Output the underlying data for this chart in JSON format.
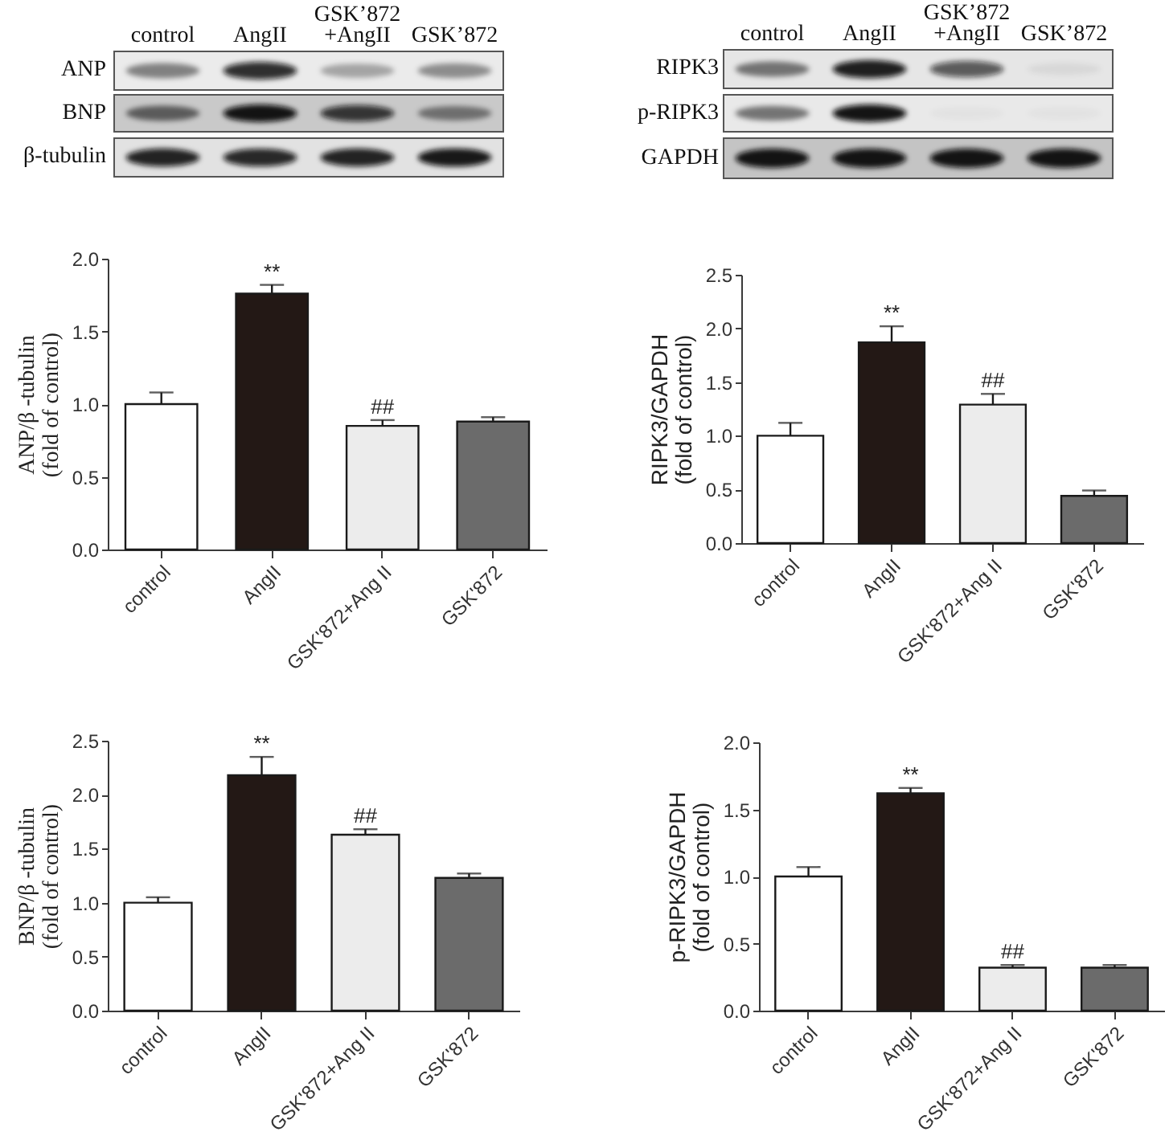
{
  "chart_data": [
    {
      "type": "other",
      "categories": [
        "control",
        "AngII",
        "GSK’872\n+AngII",
        "GSK’872"
      ],
      "y_categories": [
        "ANP",
        "BNP",
        "β-tubulin"
      ]
    },
    {
      "type": "other",
      "categories": [
        "control",
        "AngII",
        "GSK’872\n+AngII",
        "GSK’872"
      ],
      "y_categories": [
        "RIPK3",
        "p-RIPK3",
        "GAPDH"
      ]
    },
    {
      "type": "bar",
      "ylabel": "ANP/β -tubulin\n(fold of control)",
      "categories": [
        "control",
        "AngII",
        "GSK'872+Ang II",
        "GSK'872"
      ],
      "values": [
        1.0,
        1.76,
        0.85,
        0.88
      ],
      "colors": [
        "#ffffff",
        "#231815",
        "#ececec",
        "#6b6b6b"
      ],
      "errors": [
        [
          1.0,
          1.08
        ],
        [
          1.76,
          1.82
        ],
        [
          0.85,
          0.89
        ],
        [
          0.88,
          0.91
        ]
      ],
      "ylim": [
        0,
        2.0
      ],
      "yticks": [
        {
          "value": 0,
          "label": "0.0"
        },
        0.5,
        {
          "value": 1,
          "label": "1.0"
        },
        1.5,
        {
          "value": 2,
          "label": "2.0"
        }
      ],
      "annotations": [
        {
          "text": "**",
          "x": "AngII",
          "y": 1.82
        },
        {
          "text": "##",
          "x": "GSK'872+Ang II",
          "y": 0.89
        }
      ]
    },
    {
      "type": "bar",
      "ylabel": "RIPK3/GAPDH\n(fold of control)",
      "categories": [
        "control",
        "AngII",
        "GSK'872+Ang II",
        "GSK'872"
      ],
      "values": [
        1.0,
        1.87,
        1.29,
        0.44
      ],
      "colors": [
        "#ffffff",
        "#231815",
        "#ececec",
        "#6b6b6b"
      ],
      "errors": [
        [
          1.0,
          1.12
        ],
        [
          1.87,
          2.02
        ],
        [
          1.29,
          1.39
        ],
        [
          0.44,
          0.49
        ]
      ],
      "ylim": [
        0,
        2.5
      ],
      "yticks": [
        {
          "value": 0,
          "label": "0.0"
        },
        0.5,
        {
          "value": 1,
          "label": "1.0"
        },
        1.5,
        {
          "value": 2,
          "label": "2.0"
        },
        2.5
      ],
      "annotations": [
        {
          "text": "**",
          "x": "AngII",
          "y": 2.02
        },
        {
          "text": "##",
          "x": "GSK'872+Ang II",
          "y": 1.39
        }
      ]
    },
    {
      "type": "bar",
      "ylabel": "BNP/β -tubulin\n(fold of control)",
      "categories": [
        "control",
        "AngII",
        "GSK'872+Ang II",
        "GSK'872"
      ],
      "values": [
        1.0,
        2.18,
        1.63,
        1.23
      ],
      "colors": [
        "#ffffff",
        "#231815",
        "#ececec",
        "#6b6b6b"
      ],
      "errors": [
        [
          1.0,
          1.05
        ],
        [
          2.18,
          2.35
        ],
        [
          1.63,
          1.68
        ],
        [
          1.23,
          1.27
        ]
      ],
      "ylim": [
        0,
        2.5
      ],
      "yticks": [
        {
          "value": 0,
          "label": "0.0"
        },
        0.5,
        {
          "value": 1,
          "label": "1.0"
        },
        1.5,
        {
          "value": 2,
          "label": "2.0"
        },
        2.5
      ],
      "annotations": [
        {
          "text": "**",
          "x": "AngII",
          "y": 2.35
        },
        {
          "text": "##",
          "x": "GSK'872+Ang II",
          "y": 1.68
        }
      ]
    },
    {
      "type": "bar",
      "ylabel": "p-RIPK3/GAPDH\n(fold of control)",
      "categories": [
        "control",
        "AngII",
        "GSK'872+Ang II",
        "GSK'872"
      ],
      "values": [
        1.0,
        1.62,
        0.32,
        0.32
      ],
      "colors": [
        "#ffffff",
        "#231815",
        "#ececec",
        "#6b6b6b"
      ],
      "errors": [
        [
          1.0,
          1.07
        ],
        [
          1.62,
          1.66
        ],
        [
          0.32,
          0.34
        ],
        [
          0.32,
          0.34
        ]
      ],
      "ylim": [
        0,
        2.0
      ],
      "yticks": [
        {
          "value": 0,
          "label": "0.0"
        },
        0.5,
        {
          "value": 1,
          "label": "1.0"
        },
        1.5,
        {
          "value": 2,
          "label": "2.0"
        }
      ],
      "annotations": [
        {
          "text": "**",
          "x": "AngII",
          "y": 1.66
        },
        {
          "text": "##",
          "x": "GSK'872+Ang II",
          "y": 0.34
        }
      ]
    }
  ]
}
